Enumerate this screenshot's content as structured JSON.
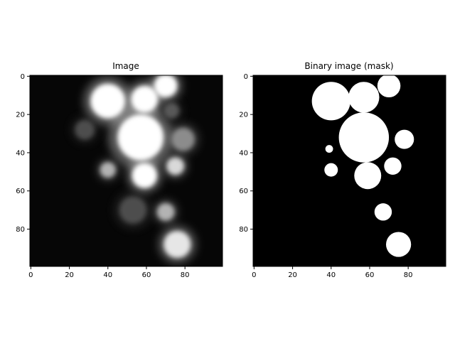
{
  "panels": [
    {
      "title": "Image",
      "xticks": [
        "0",
        "20",
        "40",
        "60",
        "80"
      ],
      "yticks": [
        "0",
        "20",
        "40",
        "60",
        "80"
      ],
      "colormap": "grayscale",
      "blobs": [
        {
          "x": 40,
          "y": 13,
          "r": 9,
          "level": 1.0
        },
        {
          "x": 59,
          "y": 12,
          "r": 7,
          "level": 1.0
        },
        {
          "x": 70,
          "y": 5,
          "r": 6,
          "level": 1.0
        },
        {
          "x": 57,
          "y": 32,
          "r": 12,
          "level": 1.0
        },
        {
          "x": 59,
          "y": 52,
          "r": 6.5,
          "level": 1.0
        },
        {
          "x": 75,
          "y": 47,
          "r": 4.5,
          "level": 0.85
        },
        {
          "x": 40,
          "y": 49,
          "r": 4,
          "level": 0.7
        },
        {
          "x": 79,
          "y": 33,
          "r": 6,
          "level": 0.55
        },
        {
          "x": 70,
          "y": 71,
          "r": 4.5,
          "level": 0.7
        },
        {
          "x": 76,
          "y": 88,
          "r": 7,
          "level": 0.9
        },
        {
          "x": 28,
          "y": 28,
          "r": 5,
          "level": 0.3
        },
        {
          "x": 53,
          "y": 70,
          "r": 7,
          "level": 0.3
        },
        {
          "x": 73,
          "y": 18,
          "r": 4,
          "level": 0.35
        }
      ]
    },
    {
      "title": "Binary image (mask)",
      "xticks": [
        "0",
        "20",
        "40",
        "60",
        "80"
      ],
      "yticks": [
        "0",
        "20",
        "40",
        "60",
        "80"
      ],
      "colormap": "black-white",
      "blobs": [
        {
          "x": 40,
          "y": 13,
          "r": 10
        },
        {
          "x": 57,
          "y": 11,
          "r": 8
        },
        {
          "x": 70,
          "y": 5,
          "r": 6
        },
        {
          "x": 57,
          "y": 32,
          "r": 13
        },
        {
          "x": 59,
          "y": 52,
          "r": 7
        },
        {
          "x": 72,
          "y": 47,
          "r": 4.5
        },
        {
          "x": 40,
          "y": 49,
          "r": 3.5
        },
        {
          "x": 78,
          "y": 33,
          "r": 5
        },
        {
          "x": 67,
          "y": 71,
          "r": 4.5
        },
        {
          "x": 75,
          "y": 88,
          "r": 6.5
        },
        {
          "x": 39,
          "y": 38,
          "r": 2
        }
      ]
    }
  ]
}
